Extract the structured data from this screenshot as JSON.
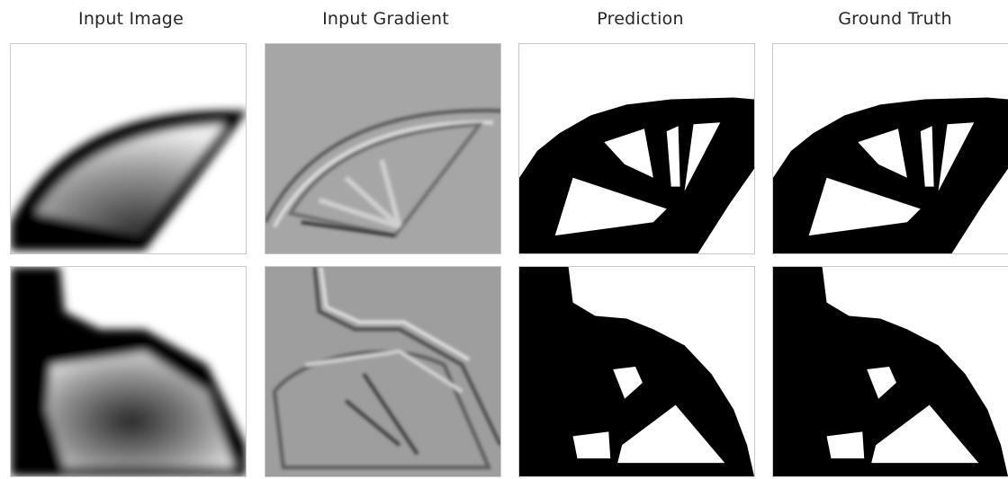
{
  "columns": [
    {
      "title": "Input Image"
    },
    {
      "title": "Input Gradient"
    },
    {
      "title": "Prediction"
    },
    {
      "title": "Ground Truth"
    }
  ],
  "colors": {
    "background": "#ffffff",
    "black": "#000000",
    "gradient_gray": "#a6a6a6",
    "frame": "#c8c8c8"
  }
}
